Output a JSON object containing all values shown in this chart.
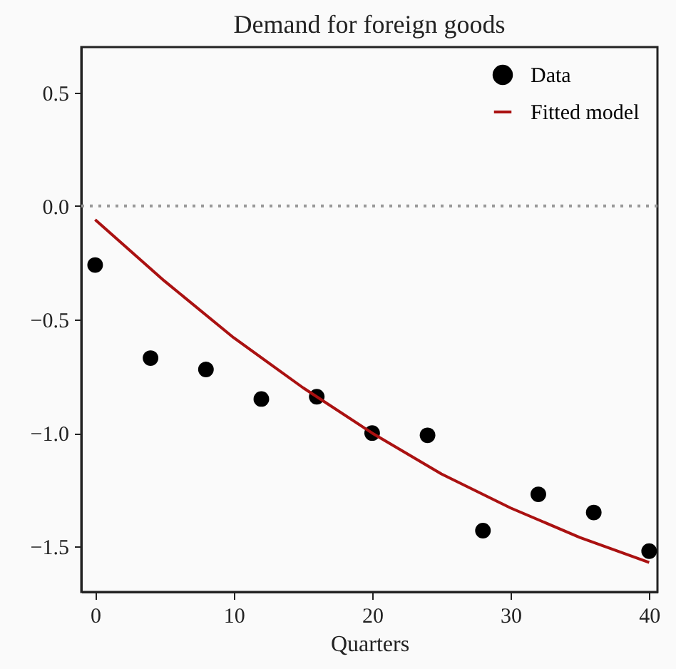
{
  "chart_data": {
    "type": "scatter",
    "title": "Demand for foreign goods",
    "xlabel": "Quarters",
    "marker": "circle",
    "legend": "top right",
    "series": [
      {
        "name": "Data",
        "type": "scatter",
        "color": "#000000",
        "x": [
          0,
          4,
          8,
          12,
          16,
          20,
          24,
          28,
          32,
          36,
          40
        ],
        "values": [
          -0.26,
          -0.67,
          -0.72,
          -0.85,
          -0.84,
          -1.0,
          -1.01,
          -1.43,
          -1.27,
          -1.35,
          -1.52
        ]
      },
      {
        "name": "Fitted model",
        "type": "line",
        "marker": "none",
        "color": "#aa1111",
        "x": [
          0,
          5,
          10,
          15,
          20,
          25,
          30,
          35,
          40
        ],
        "values": [
          -0.06,
          -0.33,
          -0.58,
          -0.8,
          -1.0,
          -1.18,
          -1.33,
          -1.46,
          -1.57
        ]
      }
    ],
    "xlim": [
      -1,
      40.6
    ],
    "ylim": [
      -1.7,
      0.7
    ],
    "xticks": [
      0,
      10,
      20,
      30,
      40
    ],
    "yticks": [
      {
        "value": 0.5,
        "label": "0.5"
      },
      {
        "value": 0,
        "label": "0.0"
      },
      {
        "value": -0.5,
        "label": "−0.5"
      },
      {
        "value": -1,
        "label": "−1.0"
      },
      {
        "value": -1.5,
        "label": "−1.5"
      }
    ],
    "ref_lines": [
      {
        "axis": "y",
        "value": 0,
        "color": "#999999",
        "line_style": "dotted"
      }
    ]
  }
}
